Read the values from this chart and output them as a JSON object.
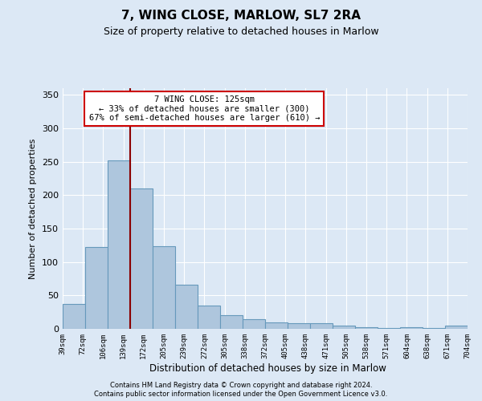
{
  "title": "7, WING CLOSE, MARLOW, SL7 2RA",
  "subtitle": "Size of property relative to detached houses in Marlow",
  "xlabel": "Distribution of detached houses by size in Marlow",
  "ylabel": "Number of detached properties",
  "bar_values": [
    37,
    122,
    252,
    210,
    124,
    66,
    35,
    20,
    14,
    10,
    9,
    9,
    5,
    3,
    1,
    2,
    1,
    5
  ],
  "bin_labels": [
    "39sqm",
    "72sqm",
    "106sqm",
    "139sqm",
    "172sqm",
    "205sqm",
    "239sqm",
    "272sqm",
    "305sqm",
    "338sqm",
    "372sqm",
    "405sqm",
    "438sqm",
    "471sqm",
    "505sqm",
    "538sqm",
    "571sqm",
    "604sqm",
    "638sqm",
    "671sqm",
    "704sqm"
  ],
  "bar_color": "#aec6dd",
  "bar_edge_color": "#6699bb",
  "property_line_color": "#8b0000",
  "annotation_text": "7 WING CLOSE: 125sqm\n← 33% of detached houses are smaller (300)\n67% of semi-detached houses are larger (610) →",
  "annotation_box_color": "#ffffff",
  "annotation_box_edge": "#cc0000",
  "ylim": [
    0,
    360
  ],
  "yticks": [
    0,
    50,
    100,
    150,
    200,
    250,
    300,
    350
  ],
  "footer1": "Contains HM Land Registry data © Crown copyright and database right 2024.",
  "footer2": "Contains public sector information licensed under the Open Government Licence v3.0.",
  "background_color": "#dce8f5",
  "grid_color": "#ffffff",
  "title_fontsize": 11,
  "subtitle_fontsize": 9
}
